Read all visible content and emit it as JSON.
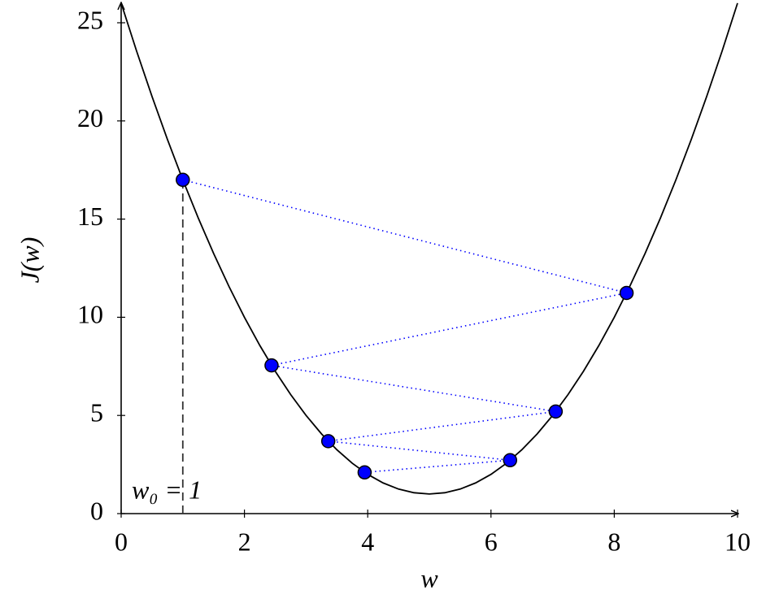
{
  "chart_data": {
    "type": "line",
    "x_label": "w",
    "y_label": "J(w)",
    "annotation": "w₀ = 1",
    "xlim": [
      0,
      10
    ],
    "ylim": [
      0,
      26
    ],
    "xticks": [
      0,
      2,
      4,
      6,
      8,
      10
    ],
    "yticks": [
      0,
      5,
      10,
      15,
      20,
      25
    ],
    "series": [
      {
        "color": "#000000",
        "x": [
          0,
          0.25,
          0.5,
          0.75,
          1,
          1.25,
          1.5,
          1.75,
          2,
          2.25,
          2.5,
          2.75,
          3,
          3.25,
          3.5,
          3.75,
          4,
          4.25,
          4.5,
          4.75,
          5,
          5.25,
          5.5,
          5.75,
          6,
          6.25,
          6.5,
          6.75,
          7,
          7.25,
          7.5,
          7.75,
          8,
          8.25,
          8.5,
          8.75,
          9,
          9.25,
          9.5,
          9.75,
          10
        ],
        "values": [
          26,
          23.5625,
          21.25,
          19.0625,
          17,
          15.0625,
          13.25,
          11.5625,
          10,
          8.5625,
          7.25,
          6.0625,
          5,
          4.0625,
          3.25,
          2.5625,
          2,
          1.5625,
          1.25,
          1.0625,
          1,
          1.0625,
          1.25,
          1.5625,
          2,
          2.5625,
          3.25,
          4.0625,
          5,
          6.0625,
          7.25,
          8.5625,
          10,
          11.5625,
          13.25,
          15.0625,
          17,
          19.0625,
          21.25,
          23.5625,
          26
        ]
      },
      {
        "color": "#0000ff",
        "x": [
          1,
          8.2,
          2.44,
          7.05,
          3.36,
          6.31,
          3.95
        ],
        "values": [
          17,
          11.24,
          7.55,
          5.2,
          3.69,
          2.72,
          2.1
        ]
      }
    ]
  }
}
